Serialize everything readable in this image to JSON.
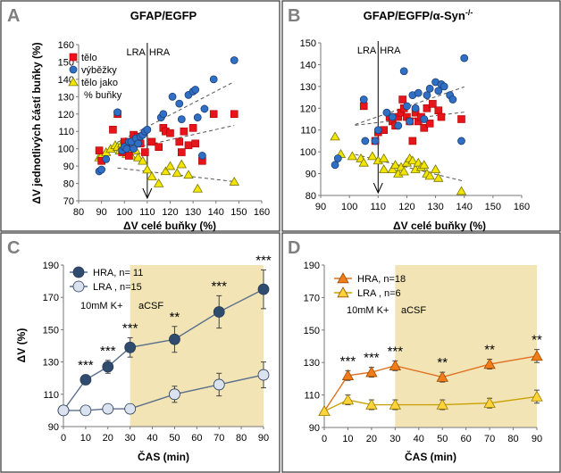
{
  "chart_data": [
    {
      "panel": "A",
      "type": "scatter",
      "title": "GFAP/EGFP",
      "xlabel": "ΔV celé buňky (%)",
      "ylabel": "ΔV jednotlivých částí buňky (%)",
      "xlim": [
        80,
        160
      ],
      "ylim": [
        70,
        160
      ],
      "xticks": [
        "80",
        "90",
        "100",
        "110",
        "120",
        "130",
        "140",
        "150",
        "160"
      ],
      "yticks": [
        "70",
        "80",
        "90",
        "100",
        "110",
        "120",
        "130",
        "140",
        "150",
        "160"
      ],
      "divider_x": 110,
      "divider_labels": {
        "left": "LRA",
        "right": "HRA"
      },
      "legend": [
        "tělo",
        "výběžky",
        "tělo jako",
        "% buňky"
      ],
      "series": [
        {
          "name": "tělo",
          "marker": "square",
          "color": "#e8141b",
          "points": [
            [
              89,
              99
            ],
            [
              90,
              93
            ],
            [
              95,
              111
            ],
            [
              97,
              120
            ],
            [
              99,
              98
            ],
            [
              100,
              104
            ],
            [
              101,
              101
            ],
            [
              102,
              96
            ],
            [
              104,
              108
            ],
            [
              106,
              107
            ],
            [
              107,
              103
            ],
            [
              109,
              98
            ],
            [
              112,
              104
            ],
            [
              115,
              101
            ],
            [
              117,
              112
            ],
            [
              118,
              110
            ],
            [
              120,
              109
            ],
            [
              124,
              104
            ],
            [
              125,
              98
            ],
            [
              128,
              102
            ],
            [
              130,
              112
            ],
            [
              131,
              103
            ],
            [
              134,
              93
            ],
            [
              139,
              120
            ],
            [
              148,
              120
            ],
            [
              126,
              110
            ]
          ]
        },
        {
          "name": "výběžky",
          "marker": "circle",
          "color": "#2f6fc4",
          "points": [
            [
              89,
              87
            ],
            [
              90,
              88
            ],
            [
              92,
              94
            ],
            [
              97,
              121
            ],
            [
              99,
              99
            ],
            [
              100,
              101
            ],
            [
              101,
              100
            ],
            [
              102,
              104
            ],
            [
              103,
              104
            ],
            [
              104,
              100
            ],
            [
              105,
              106
            ],
            [
              106,
              103
            ],
            [
              107,
              107
            ],
            [
              108,
              108
            ],
            [
              109,
              110
            ],
            [
              110,
              111
            ],
            [
              116,
              118
            ],
            [
              117,
              120
            ],
            [
              121,
              130
            ],
            [
              124,
              126
            ],
            [
              125,
              117
            ],
            [
              128,
              131
            ],
            [
              130,
              133
            ],
            [
              131,
              134
            ],
            [
              132,
              118
            ],
            [
              134,
              96
            ],
            [
              135,
              123
            ],
            [
              139,
              140
            ],
            [
              148,
              151
            ]
          ]
        },
        {
          "name": "tělo jako % buňky",
          "marker": "triangle",
          "color": "#f2e600",
          "points": [
            [
              89,
              95
            ],
            [
              90,
              96
            ],
            [
              92,
              98
            ],
            [
              94,
              100
            ],
            [
              96,
              102
            ],
            [
              97,
              101
            ],
            [
              98,
              99
            ],
            [
              99,
              103
            ],
            [
              100,
              100
            ],
            [
              101,
              97
            ],
            [
              102,
              98
            ],
            [
              103,
              96
            ],
            [
              104,
              101
            ],
            [
              105,
              99
            ],
            [
              106,
              95
            ],
            [
              108,
              93
            ],
            [
              110,
              88
            ],
            [
              112,
              84
            ],
            [
              115,
              80
            ],
            [
              118,
              87
            ],
            [
              120,
              90
            ],
            [
              123,
              86
            ],
            [
              125,
              91
            ],
            [
              128,
              85
            ],
            [
              132,
              77
            ],
            [
              148,
              81
            ]
          ]
        }
      ],
      "trendlines": [
        "tělo",
        "výběžky",
        "tělo jako % buňky"
      ]
    },
    {
      "panel": "B",
      "type": "scatter",
      "title": "GFAP/EGFP/α-Syn",
      "title_sup": "-/-",
      "xlabel": "ΔV celé buňky (%)",
      "ylabel": "",
      "xlim": [
        90,
        160
      ],
      "ylim": [
        80,
        150
      ],
      "xticks": [
        "90",
        "100",
        "110",
        "120",
        "130",
        "140",
        "150",
        "160"
      ],
      "yticks": [
        "80",
        "90",
        "100",
        "110",
        "120",
        "130",
        "140",
        "150"
      ],
      "divider_x": 110,
      "divider_labels": {
        "left": "LRA",
        "right": "HRA"
      },
      "series": [
        {
          "name": "tělo",
          "marker": "square",
          "color": "#e8141b",
          "points": [
            [
              105,
              121
            ],
            [
              109,
              105
            ],
            [
              110,
              109
            ],
            [
              112,
              110
            ],
            [
              114,
              116
            ],
            [
              115,
              114
            ],
            [
              116,
              112
            ],
            [
              117,
              116
            ],
            [
              118,
              118
            ],
            [
              118.5,
              124
            ],
            [
              119,
              120
            ],
            [
              120,
              116
            ],
            [
              121,
              114
            ],
            [
              122,
              105
            ],
            [
              123,
              118
            ],
            [
              124,
              114
            ],
            [
              125,
              116
            ],
            [
              126,
              111
            ],
            [
              127,
              120
            ],
            [
              128,
              113
            ],
            [
              129,
              122
            ],
            [
              131,
              119
            ],
            [
              132,
              116
            ],
            [
              139,
              115
            ]
          ]
        },
        {
          "name": "výběžky",
          "marker": "circle",
          "color": "#2f6fc4",
          "points": [
            [
              95,
              94
            ],
            [
              96,
              97
            ],
            [
              105,
              124
            ],
            [
              105.5,
              105
            ],
            [
              109,
              105
            ],
            [
              110,
              110
            ],
            [
              113,
              118
            ],
            [
              115,
              116
            ],
            [
              117,
              112
            ],
            [
              119,
              137
            ],
            [
              120,
              121
            ],
            [
              121,
              114
            ],
            [
              122,
              126
            ],
            [
              123,
              120
            ],
            [
              124,
              127
            ],
            [
              126,
              115
            ],
            [
              127,
              126
            ],
            [
              128,
              129
            ],
            [
              130,
              132
            ],
            [
              131,
              128
            ],
            [
              132,
              131
            ],
            [
              133,
              130
            ],
            [
              135,
              126
            ],
            [
              136,
              124
            ],
            [
              139,
              105
            ],
            [
              140,
              143
            ]
          ]
        },
        {
          "name": "tělo jako % buňky",
          "marker": "triangle",
          "color": "#f2e600",
          "points": [
            [
              95,
              107
            ],
            [
              97,
              99
            ],
            [
              101,
              98
            ],
            [
              104,
              97
            ],
            [
              105,
              95
            ],
            [
              108,
              98
            ],
            [
              110,
              96
            ],
            [
              112,
              97
            ],
            [
              115,
              92
            ],
            [
              116,
              94
            ],
            [
              117,
              90
            ],
            [
              118,
              93
            ],
            [
              119,
              91
            ],
            [
              120,
              95
            ],
            [
              121,
              97
            ],
            [
              122,
              96
            ],
            [
              123,
              92
            ],
            [
              124,
              95
            ],
            [
              125,
              93
            ],
            [
              126,
              94
            ],
            [
              127,
              90
            ],
            [
              128,
              89
            ],
            [
              130,
              92
            ],
            [
              131,
              88
            ],
            [
              139,
              82
            ],
            [
              112,
              92
            ]
          ]
        }
      ],
      "trendlines": [
        "tělo",
        "výběžky",
        "tělo jako % buňky"
      ]
    },
    {
      "panel": "C",
      "type": "line",
      "xlabel": "ČAS (min)",
      "ylabel": "ΔV (%)",
      "xlim": [
        0,
        90
      ],
      "ylim": [
        90,
        190
      ],
      "xticks": [
        "0",
        "10",
        "20",
        "30",
        "40",
        "50",
        "60",
        "70",
        "80",
        "90"
      ],
      "yticks": [
        "90",
        "110",
        "130",
        "150",
        "170",
        "190"
      ],
      "shaded_from_x": 30,
      "annotations": [
        "10mM K+",
        "aCSF"
      ],
      "series": [
        {
          "name": "HRA, n= 11",
          "marker": "circle",
          "color": "#2f4b6e",
          "x": [
            0,
            10,
            20,
            30,
            50,
            70,
            90
          ],
          "y": [
            100,
            119,
            127,
            139,
            144,
            161,
            175
          ],
          "err": [
            0,
            3,
            4,
            6,
            8,
            10,
            12
          ]
        },
        {
          "name": "LRA , n=15",
          "marker": "circle",
          "color": "#d9e2ee",
          "x": [
            0,
            10,
            20,
            30,
            50,
            70,
            90
          ],
          "y": [
            100,
            100,
            101,
            101,
            110,
            116,
            122
          ],
          "err": [
            0,
            1,
            2,
            2,
            5,
            7,
            8
          ]
        }
      ],
      "significance": [
        {
          "x": 10,
          "label": "***"
        },
        {
          "x": 20,
          "label": "***"
        },
        {
          "x": 30,
          "label": "***"
        },
        {
          "x": 50,
          "label": "**"
        },
        {
          "x": 70,
          "label": "***"
        },
        {
          "x": 90,
          "label": "***"
        }
      ]
    },
    {
      "panel": "D",
      "type": "line",
      "xlabel": "ČAS (min)",
      "ylabel": "",
      "xlim": [
        0,
        90
      ],
      "ylim": [
        90,
        190
      ],
      "xticks": [
        "0",
        "10",
        "20",
        "30",
        "40",
        "50",
        "60",
        "70",
        "80",
        "90"
      ],
      "yticks": [
        "90",
        "110",
        "130",
        "150",
        "170",
        "190"
      ],
      "shaded_from_x": 30,
      "annotations": [
        "10mM K+",
        "aCSF"
      ],
      "series": [
        {
          "name": "HRA, n=18",
          "marker": "triangle",
          "color": "#f07d1a",
          "x": [
            0,
            10,
            20,
            30,
            50,
            70,
            90
          ],
          "y": [
            100,
            122,
            124,
            128,
            121,
            129,
            134
          ],
          "err": [
            0,
            3,
            3,
            3,
            3,
            3,
            4
          ]
        },
        {
          "name": "LRA , n=6",
          "marker": "triangle",
          "color": "#ffd43b",
          "x": [
            0,
            10,
            20,
            30,
            50,
            70,
            90
          ],
          "y": [
            100,
            107,
            104,
            104,
            104,
            105,
            109
          ],
          "err": [
            0,
            3,
            3,
            3,
            3,
            3,
            4
          ]
        }
      ],
      "significance": [
        {
          "x": 10,
          "label": "***"
        },
        {
          "x": 20,
          "label": "***"
        },
        {
          "x": 30,
          "label": "***"
        },
        {
          "x": 50,
          "label": "**"
        },
        {
          "x": 70,
          "label": "**"
        },
        {
          "x": 90,
          "label": "**"
        }
      ]
    }
  ]
}
